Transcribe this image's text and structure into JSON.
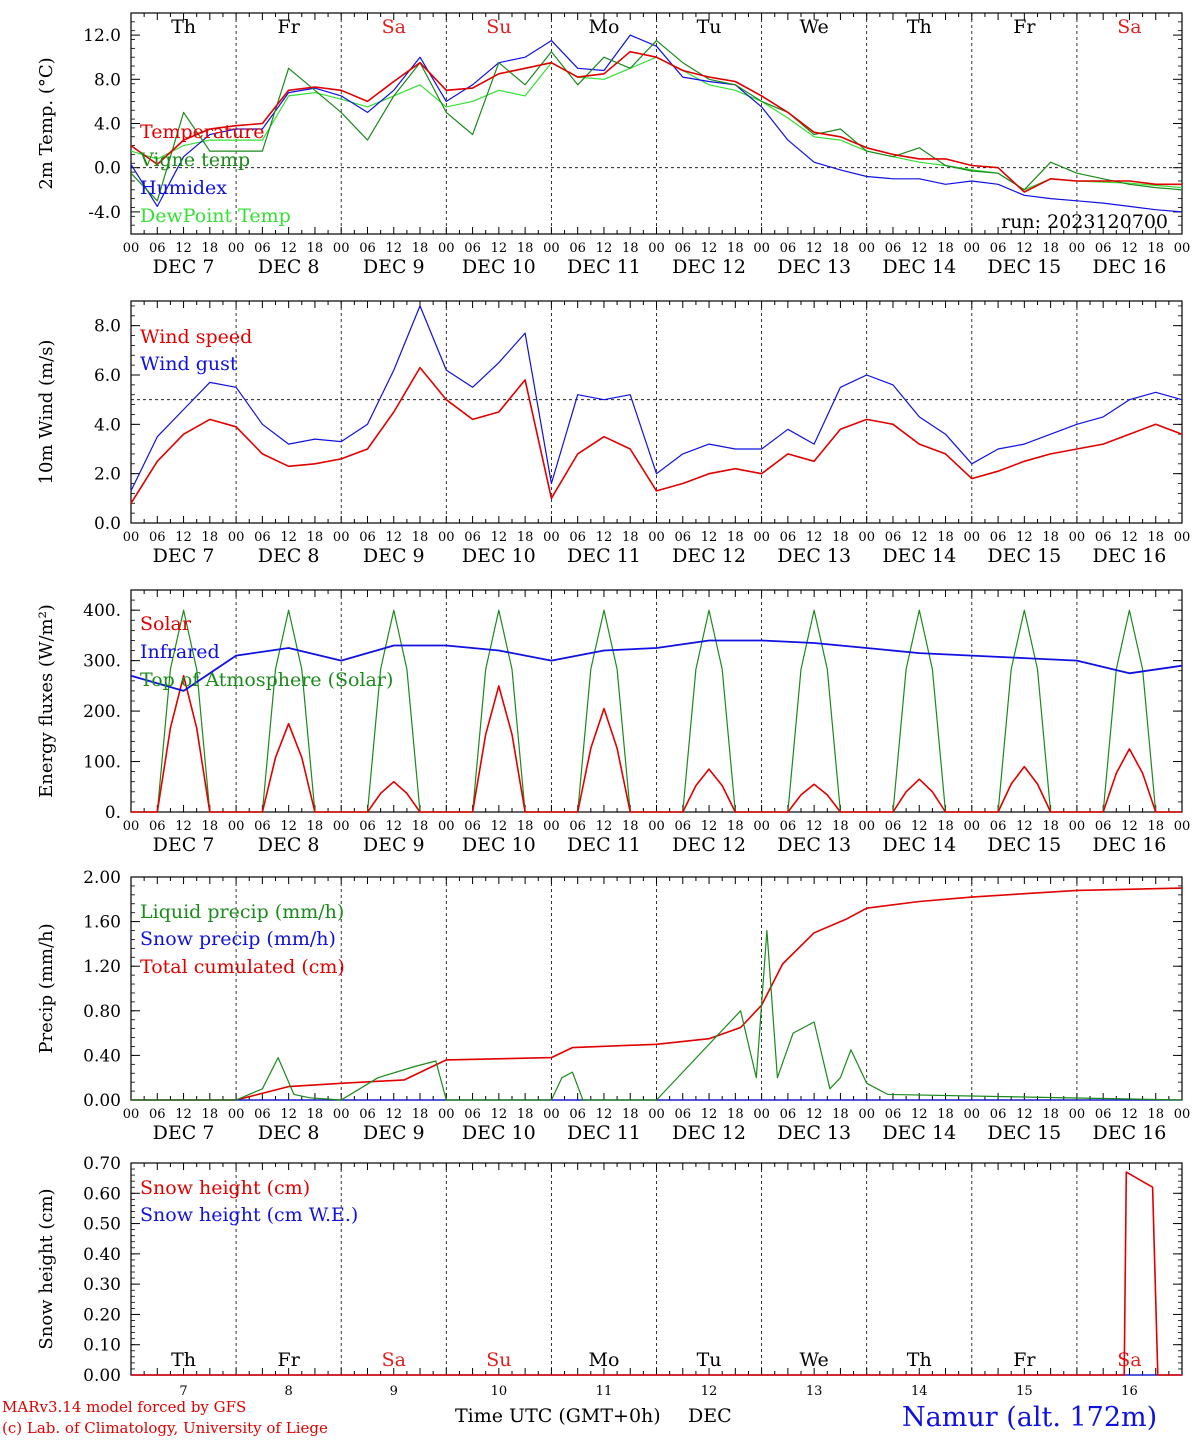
{
  "colors": {
    "red": "#e00000",
    "green": "#1a8a1a",
    "blue": "#1010e0",
    "lightgreen": "#33e033",
    "weekend": "#e02020",
    "axis": "#000000"
  },
  "days": {
    "weekday_labels": [
      "Th",
      "Fr",
      "Sa",
      "Su",
      "Mo",
      "Tu",
      "We",
      "Th",
      "Fr",
      "Sa"
    ],
    "weekend_flags": [
      false,
      false,
      true,
      true,
      false,
      false,
      false,
      false,
      false,
      true
    ],
    "date_labels": [
      "DEC  7",
      "DEC  8",
      "DEC  9",
      "DEC 10",
      "DEC 11",
      "DEC 12",
      "DEC 13",
      "DEC 14",
      "DEC 15",
      "DEC 16"
    ],
    "day_numbers": [
      "7",
      "8",
      "9",
      "10",
      "11",
      "12",
      "13",
      "14",
      "15",
      "16"
    ],
    "hour_ticks": [
      "00",
      "06",
      "12",
      "18"
    ],
    "final_tick": "00"
  },
  "run_label": "run: 2023120700",
  "footer": {
    "credit1": "MARv3.14 model forced by GFS",
    "credit2": "(c) Lab. of Climatology, University of Liege",
    "xlabel": "Time UTC (GMT+0h)",
    "month": "DEC",
    "station": "Namur (alt. 172m)"
  },
  "chart_data": [
    {
      "type": "line",
      "ylabel": "2m Temp. (°C)",
      "ylim": [
        -6,
        14
      ],
      "yticks": [
        "-4.0",
        "0.0",
        "4.0",
        "8.0",
        "12.0"
      ],
      "yticks_values": [
        -4,
        0,
        4,
        8,
        12
      ],
      "reference_line": 0,
      "x_days": [
        0,
        0.25,
        0.5,
        0.75,
        1,
        1.25,
        1.5,
        1.75,
        2,
        2.25,
        2.5,
        2.75,
        3,
        3.25,
        3.5,
        3.75,
        4,
        4.25,
        4.5,
        4.75,
        5,
        5.25,
        5.5,
        5.75,
        6,
        6.25,
        6.5,
        6.75,
        7,
        7.25,
        7.5,
        7.75,
        8,
        8.25,
        8.5,
        8.75,
        9,
        9.25,
        9.5,
        9.75,
        10
      ],
      "series": [
        {
          "name": "Temperature",
          "color": "red",
          "values": [
            2.0,
            0.3,
            2.5,
            3.5,
            3.8,
            4.0,
            7.0,
            7.3,
            7.0,
            6.0,
            7.8,
            9.5,
            7.0,
            7.2,
            8.5,
            9.0,
            9.5,
            8.2,
            8.5,
            10.5,
            10.0,
            8.8,
            8.2,
            7.8,
            6.5,
            5.0,
            3.2,
            2.8,
            1.8,
            1.2,
            0.8,
            0.8,
            0.2,
            0.0,
            -2.2,
            -1.0,
            -1.2,
            -1.2,
            -1.2,
            -1.5,
            -1.5
          ]
        },
        {
          "name": "Vigne temp",
          "color": "green",
          "values": [
            -0.5,
            -3.0,
            5.0,
            1.5,
            1.5,
            1.5,
            9.0,
            7.0,
            5.0,
            2.5,
            6.5,
            9.5,
            5.0,
            3.0,
            9.5,
            7.5,
            10.5,
            7.5,
            10.0,
            9.0,
            11.5,
            9.5,
            8.0,
            7.5,
            6.0,
            5.0,
            3.0,
            3.5,
            1.5,
            1.0,
            1.8,
            0.2,
            -0.3,
            -0.5,
            -2.0,
            0.5,
            -0.5,
            -1.0,
            -1.5,
            -1.8,
            -2.0
          ]
        },
        {
          "name": "Humidex",
          "color": "blue",
          "values": [
            0.3,
            -3.5,
            1.0,
            3.0,
            3.5,
            3.5,
            6.8,
            7.2,
            6.5,
            5.0,
            7.0,
            10.0,
            6.0,
            7.5,
            9.5,
            10.0,
            11.5,
            9.0,
            8.8,
            12.0,
            11.0,
            8.2,
            7.8,
            7.5,
            5.5,
            2.5,
            0.5,
            -0.2,
            -0.8,
            -1.0,
            -1.0,
            -1.5,
            -1.2,
            -1.5,
            -2.5,
            -2.8,
            -3.0,
            -3.2,
            -3.5,
            -3.8,
            -4.0
          ]
        },
        {
          "name": "DewPoint Temp",
          "color": "lightgreen",
          "values": [
            1.5,
            0.8,
            2.0,
            2.5,
            2.5,
            2.5,
            6.5,
            6.8,
            6.2,
            5.5,
            6.5,
            7.5,
            5.5,
            6.0,
            7.0,
            6.5,
            9.5,
            8.2,
            8.0,
            9.0,
            10.0,
            8.8,
            7.5,
            7.0,
            6.0,
            4.5,
            2.8,
            2.5,
            1.5,
            1.0,
            0.5,
            0.2,
            -0.2,
            -0.5,
            -2.0,
            -1.0,
            -1.2,
            -1.3,
            -1.4,
            -1.6,
            -1.8
          ]
        }
      ]
    },
    {
      "type": "line",
      "ylabel": "10m Wind (m/s)",
      "ylim": [
        0,
        9.0
      ],
      "yticks": [
        "0.0",
        "2.0",
        "4.0",
        "6.0",
        "8.0"
      ],
      "yticks_values": [
        0,
        2,
        4,
        6,
        8
      ],
      "reference_line": 5,
      "x_days": [
        0,
        0.25,
        0.5,
        0.75,
        1,
        1.25,
        1.5,
        1.75,
        2,
        2.25,
        2.5,
        2.75,
        3,
        3.25,
        3.5,
        3.75,
        4,
        4.25,
        4.5,
        4.75,
        5,
        5.25,
        5.5,
        5.75,
        6,
        6.25,
        6.5,
        6.75,
        7,
        7.25,
        7.5,
        7.75,
        8,
        8.25,
        8.5,
        8.75,
        9,
        9.25,
        9.5,
        9.75,
        10
      ],
      "series": [
        {
          "name": "Wind speed",
          "color": "red",
          "values": [
            0.8,
            2.5,
            3.6,
            4.2,
            3.9,
            2.8,
            2.3,
            2.4,
            2.6,
            3.0,
            4.5,
            6.3,
            5.0,
            4.2,
            4.5,
            5.8,
            1.0,
            2.8,
            3.5,
            3.0,
            1.3,
            1.6,
            2.0,
            2.2,
            2.0,
            2.8,
            2.5,
            3.8,
            4.2,
            4.0,
            3.2,
            2.8,
            1.8,
            2.1,
            2.5,
            2.8,
            3.0,
            3.2,
            3.6,
            4.0,
            3.6
          ]
        },
        {
          "name": "Wind gust",
          "color": "blue",
          "values": [
            1.3,
            3.5,
            4.6,
            5.7,
            5.5,
            4.0,
            3.2,
            3.4,
            3.3,
            4.0,
            6.2,
            8.8,
            6.2,
            5.5,
            6.5,
            7.7,
            1.6,
            5.2,
            5.0,
            5.2,
            2.0,
            2.8,
            3.2,
            3.0,
            3.0,
            3.8,
            3.2,
            5.5,
            6.0,
            5.6,
            4.3,
            3.6,
            2.4,
            3.0,
            3.2,
            3.6,
            4.0,
            4.3,
            5.0,
            5.3,
            5.0
          ]
        }
      ]
    },
    {
      "type": "line",
      "ylabel": "Energy fluxes (W/m²)",
      "ylim": [
        0,
        440
      ],
      "yticks": [
        "0.",
        "100.",
        "200.",
        "300.",
        "400."
      ],
      "yticks_values": [
        0,
        100,
        200,
        300,
        400
      ],
      "solar_peaks": [
        270,
        175,
        60,
        250,
        205,
        85,
        55,
        65,
        90,
        125
      ],
      "toa_peak": 400,
      "series": [
        {
          "name": "Solar",
          "color": "red"
        },
        {
          "name": "Infrared",
          "color": "blue",
          "x_days": [
            0,
            0.5,
            1,
            1.5,
            2,
            2.5,
            3,
            3.5,
            4,
            4.5,
            5,
            5.5,
            6,
            6.5,
            7,
            7.5,
            8,
            8.5,
            9,
            9.5,
            10
          ],
          "values": [
            270,
            240,
            310,
            325,
            300,
            330,
            330,
            320,
            300,
            320,
            325,
            340,
            340,
            335,
            325,
            315,
            310,
            305,
            300,
            275,
            290
          ]
        },
        {
          "name": "Top of Atmosphere (Solar)",
          "color": "green"
        }
      ]
    },
    {
      "type": "line",
      "ylabel": "Precip (mm/h)",
      "ylim": [
        0,
        2.0
      ],
      "yticks": [
        "0.00",
        "0.40",
        "0.80",
        "1.20",
        "1.60",
        "2.00"
      ],
      "yticks_values": [
        0,
        0.4,
        0.8,
        1.2,
        1.6,
        2.0
      ],
      "series": [
        {
          "name": "Liquid precip (mm/h)",
          "color": "green",
          "x_days": [
            0,
            1.0,
            1.25,
            1.4,
            1.55,
            1.7,
            2.0,
            2.35,
            2.7,
            2.9,
            3.0,
            4.0,
            4.1,
            4.2,
            4.3,
            5.0,
            5.8,
            5.95,
            6.05,
            6.15,
            6.3,
            6.5,
            6.65,
            6.75,
            6.85,
            7.0,
            7.2,
            10.0
          ],
          "values": [
            0,
            0,
            0.1,
            0.38,
            0.05,
            0.02,
            0,
            0.2,
            0.3,
            0.35,
            0,
            0,
            0.2,
            0.25,
            0,
            0,
            0.8,
            0.2,
            1.52,
            0.2,
            0.6,
            0.7,
            0.1,
            0.2,
            0.45,
            0.15,
            0.05,
            0
          ]
        },
        {
          "name": "Snow precip (mm/h)",
          "color": "blue",
          "x_days": [
            0,
            10
          ],
          "values": [
            0,
            0
          ]
        },
        {
          "name": "Total cumulated (cm)",
          "color": "red",
          "x_days": [
            0,
            1.0,
            1.5,
            2.0,
            2.6,
            3.0,
            4.0,
            4.2,
            5.0,
            5.5,
            5.8,
            6.0,
            6.2,
            6.5,
            6.8,
            7.0,
            7.5,
            8.0,
            8.5,
            9.0,
            10.0
          ],
          "values": [
            0,
            0,
            0.12,
            0.15,
            0.18,
            0.36,
            0.38,
            0.47,
            0.5,
            0.55,
            0.65,
            0.85,
            1.22,
            1.5,
            1.62,
            1.72,
            1.78,
            1.82,
            1.85,
            1.88,
            1.9
          ]
        }
      ]
    },
    {
      "type": "line",
      "ylabel": "Snow height (cm)",
      "ylim": [
        0,
        0.7
      ],
      "yticks": [
        "0.00",
        "0.10",
        "0.20",
        "0.30",
        "0.40",
        "0.50",
        "0.60",
        "0.70"
      ],
      "yticks_values": [
        0,
        0.1,
        0.2,
        0.3,
        0.4,
        0.5,
        0.6,
        0.7
      ],
      "series": [
        {
          "name": "Snow height (cm)",
          "color": "red",
          "x_days": [
            0,
            9.45,
            9.47,
            9.72,
            9.77,
            10.0
          ],
          "values": [
            0,
            0,
            0.67,
            0.62,
            0,
            0
          ]
        },
        {
          "name": "Snow height (cm W.E.)",
          "color": "blue",
          "x_days": [
            0,
            10
          ],
          "values": [
            0,
            0
          ]
        }
      ]
    }
  ]
}
